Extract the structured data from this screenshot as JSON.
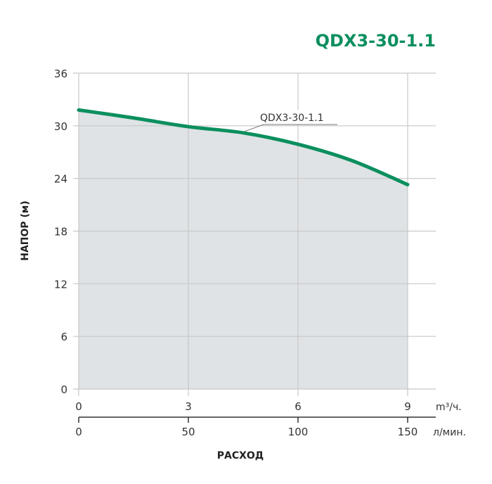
{
  "chart_data": {
    "type": "area",
    "title": "QDX3-30-1.1",
    "ylabel": "НАПОР (м)",
    "xlabel": "РАСХОД",
    "x_unit_primary": "m³/ч.",
    "x_unit_secondary": "л/мин.",
    "xlim": [
      0,
      9
    ],
    "ylim": [
      0,
      36
    ],
    "xticks": [
      0,
      3,
      6,
      9
    ],
    "xticks_secondary": [
      0,
      50,
      100,
      150
    ],
    "yticks": [
      0,
      6,
      12,
      18,
      24,
      30,
      36
    ],
    "grid": true,
    "series": [
      {
        "name": "QDX3-30-1.1",
        "x": [
          0,
          1.5,
          3,
          4.5,
          6,
          7.5,
          9
        ],
        "y": [
          31.8,
          30.9,
          29.9,
          29.2,
          27.9,
          26.0,
          23.3
        ]
      }
    ],
    "colors": {
      "line": "#0b8f5e",
      "fill": "#dfe3e6",
      "grid": "#c8c8c8",
      "title": "#0b8f5e"
    }
  }
}
